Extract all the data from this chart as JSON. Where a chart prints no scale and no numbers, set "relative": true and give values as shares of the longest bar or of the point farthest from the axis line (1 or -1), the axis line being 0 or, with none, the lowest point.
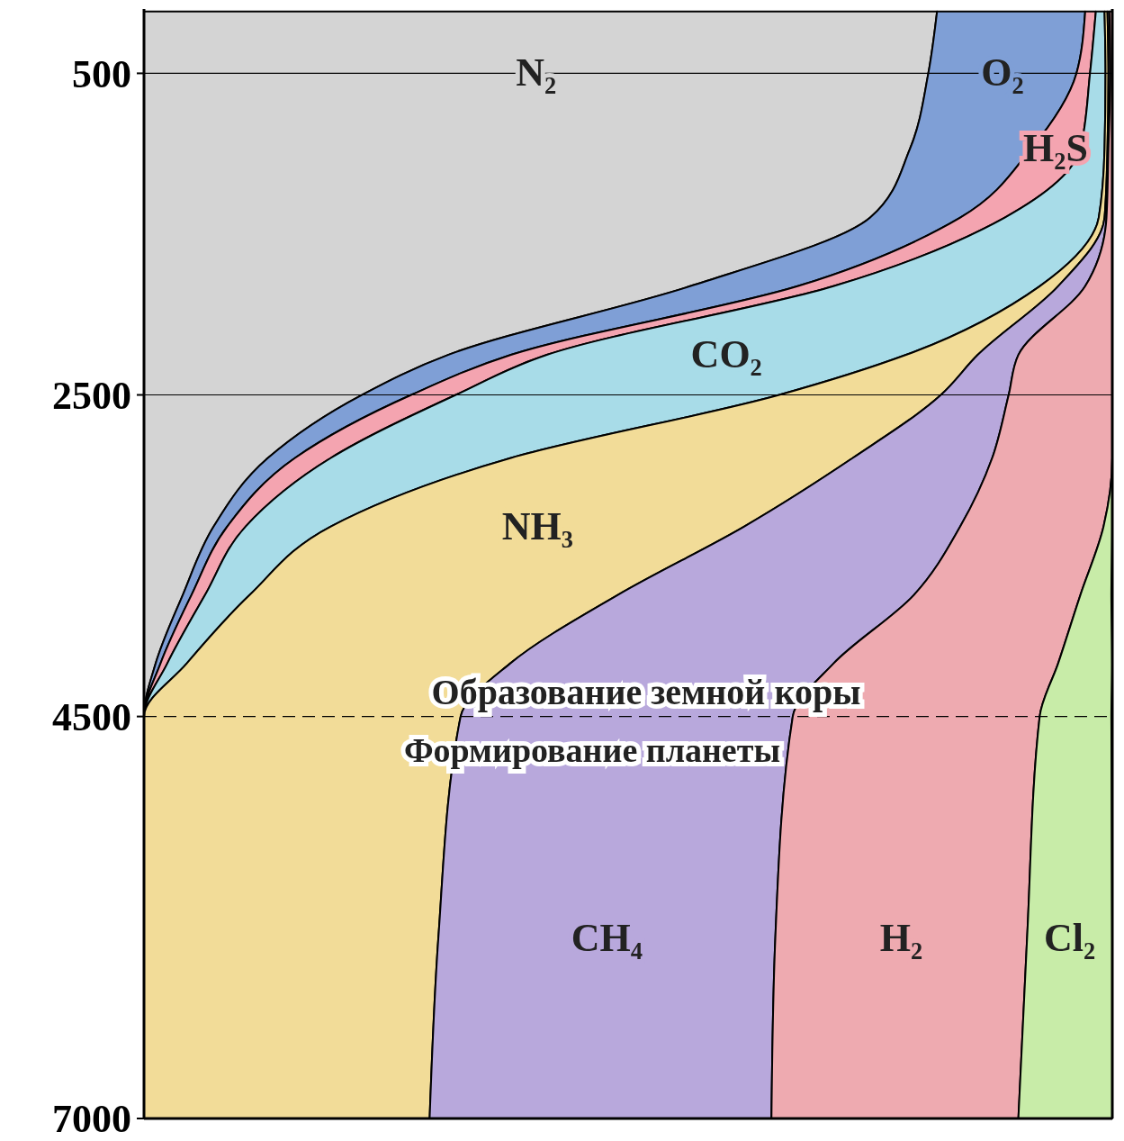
{
  "chart_data": {
    "type": "area",
    "stacked": true,
    "orientation": "horizontal",
    "relative": true,
    "legend": false,
    "x": [
      116,
      500,
      970,
      1397,
      1824,
      2251,
      2500,
      2892,
      3318,
      3745,
      4171,
      4500,
      5878,
      7000
    ],
    "ylim": [
      7000,
      100
    ],
    "yticks": [
      500,
      2500,
      4500,
      7000
    ],
    "series": [
      {
        "name": "N₂",
        "color": "#d4d4d4",
        "values": [
          0.819,
          0.81,
          0.791,
          0.75,
          0.564,
          0.314,
          0.225,
          0.128,
          0.072,
          0.04,
          0.012,
          0,
          0,
          0
        ]
      },
      {
        "name": "O₂",
        "color": "#7f9fd6",
        "values": [
          0.153,
          0.153,
          0.125,
          0.093,
          0.111,
          0.065,
          0.051,
          0.028,
          0.014,
          0.009,
          0.005,
          0,
          0,
          0
        ]
      },
      {
        "name": "H₂S",
        "color": "#f4a4b0",
        "values": [
          0.011,
          0.014,
          0.051,
          0.046,
          0.037,
          0.037,
          0.046,
          0.037,
          0.019,
          0.014,
          0.007,
          0,
          0,
          0
        ]
      },
      {
        "name": "CO₂",
        "color": "#a8dce8",
        "values": [
          0.009,
          0.016,
          0.025,
          0.097,
          0.213,
          0.371,
          0.334,
          0.186,
          0.088,
          0.046,
          0.02,
          0,
          0,
          0
        ]
      },
      {
        "name": "NH₃",
        "color": "#f2dc98",
        "values": [
          0.003,
          0.003,
          0.003,
          0.006,
          0.019,
          0.074,
          0.167,
          0.353,
          0.427,
          0.38,
          0.334,
          0.327,
          0.304,
          0.295
        ]
      },
      {
        "name": "CH₄",
        "color": "#b8a8dc",
        "values": [
          0.002,
          0.002,
          0.001,
          0.002,
          0.028,
          0.042,
          0.07,
          0.144,
          0.223,
          0.306,
          0.334,
          0.343,
          0.348,
          0.353
        ]
      },
      {
        "name": "H₂",
        "color": "#eeaab0",
        "values": [
          0.003,
          0.002,
          0.004,
          0.006,
          0.028,
          0.097,
          0.107,
          0.124,
          0.148,
          0.172,
          0.232,
          0.255,
          0.26,
          0.255
        ]
      },
      {
        "name": "Cl₂",
        "color": "#c8eca8",
        "values": [
          0,
          0,
          0,
          0,
          0,
          0,
          0,
          0,
          0.009,
          0.032,
          0.056,
          0.074,
          0.088,
          0.097
        ]
      }
    ],
    "ref_lines": [
      {
        "axis": "y",
        "value": 500,
        "line_style": "solid",
        "color": "#000000"
      },
      {
        "axis": "y",
        "value": 2500,
        "line_style": "solid",
        "color": "#000000"
      },
      {
        "axis": "y",
        "value": 4500,
        "line_style": "dashed",
        "color": "#000000",
        "label": "Образование земной коры"
      }
    ],
    "annotations": [
      "Формирование планеты"
    ]
  }
}
